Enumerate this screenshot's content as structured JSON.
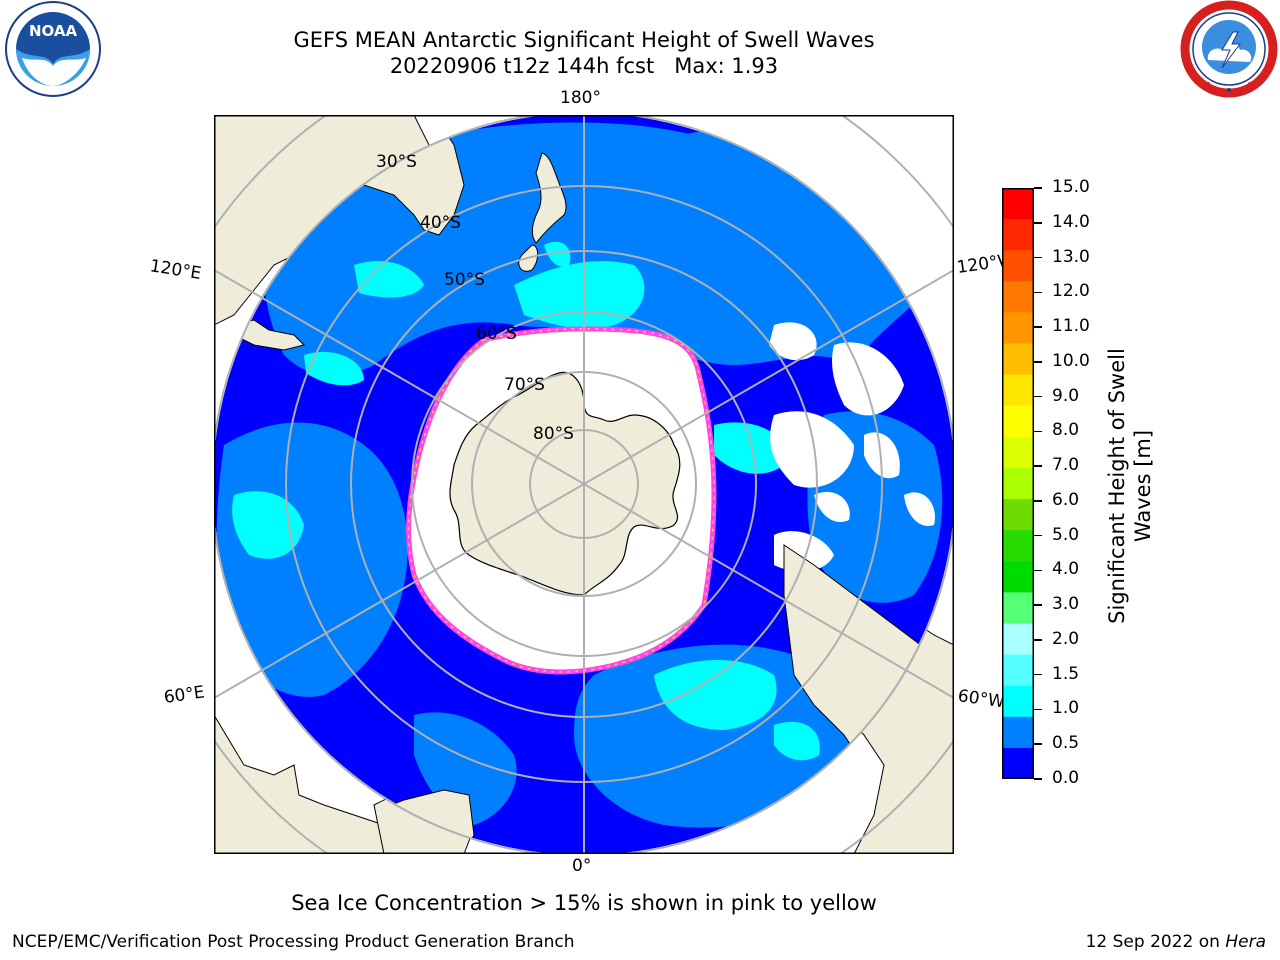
{
  "header": {
    "title_line1": "GEFS MEAN Antarctic Significant Height of Swell Waves",
    "title_line2": "20220906 t12z 144h fcst   Max: 1.93"
  },
  "logos": {
    "noaa": {
      "text": "NOAA",
      "ring_text": "NATIONAL OCEANIC AND ATMOSPHERIC ADMINISTRATION · U.S. DEPARTMENT OF COMMERCE"
    },
    "nws": {
      "ring_text": "NATIONAL WEATHER SERVICE"
    }
  },
  "map": {
    "projection": "south polar stereographic",
    "longitude_labels": {
      "top": "180°",
      "bottom": "0°",
      "upper_left": "120°E",
      "upper_right": "120°W",
      "lower_left": "60°E",
      "lower_right": "60°W"
    },
    "latitude_labels": [
      "30°S",
      "40°S",
      "50°S",
      "60°S",
      "70°S",
      "80°S"
    ],
    "colors": {
      "land": "#efedd9",
      "ice": "#ffffff",
      "grid": "#b0b0b0",
      "ice_edge_pink": "#ff44ee",
      "ice_edge_yellow": "#ffcc22"
    }
  },
  "colorbar": {
    "title_line1": "Significant Height of Swell",
    "title_line2": "Waves [m]",
    "tick_labels": [
      "15.0",
      "14.0",
      "13.0",
      "12.0",
      "11.0",
      "10.0",
      "9.0",
      "8.0",
      "7.0",
      "6.0",
      "5.0",
      "4.0",
      "3.0",
      "2.0",
      "1.5",
      "1.0",
      "0.5",
      "0.0"
    ],
    "colors_top_to_bottom": [
      "#ff0000",
      "#ff2800",
      "#ff5000",
      "#ff7800",
      "#ff9600",
      "#ffbe00",
      "#ffe600",
      "#ffff00",
      "#dcff00",
      "#aaff00",
      "#6edc00",
      "#28dc00",
      "#00dc00",
      "#55ff77",
      "#aaffff",
      "#55ffff",
      "#00ffff",
      "#0080ff",
      "#0000ff"
    ]
  },
  "footer": {
    "sea_ice_note": "Sea Ice Concentration > 15% is shown in pink to yellow",
    "credit": "NCEP/EMC/Verification Post Processing Product Generation Branch",
    "date_text": "12 Sep 2022 on",
    "system": "Hera"
  }
}
